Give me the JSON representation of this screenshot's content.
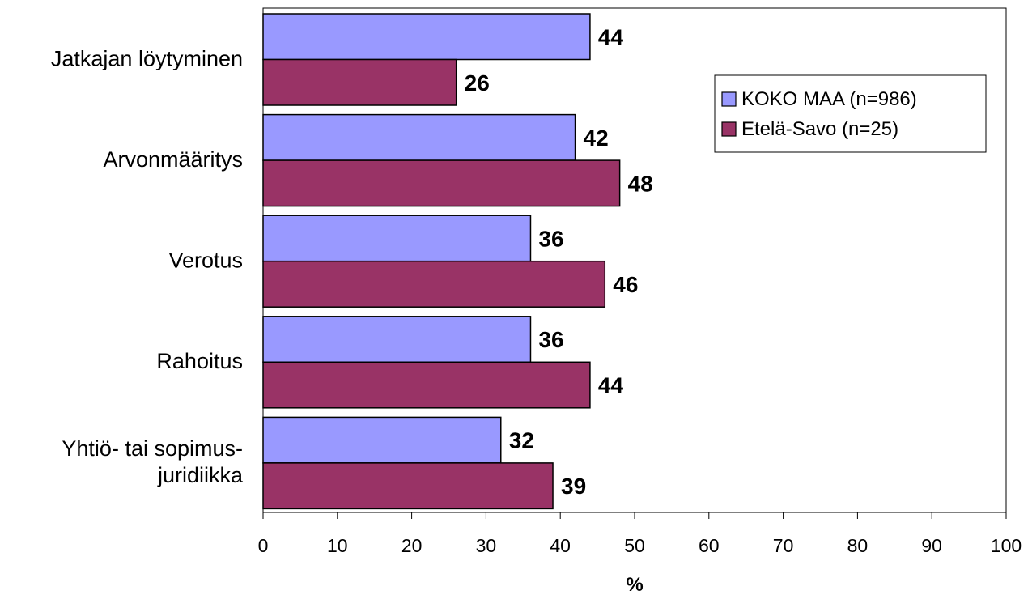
{
  "chart_data": {
    "type": "bar",
    "orientation": "horizontal",
    "categories": [
      "Jatkajan löytyminen",
      "Arvonmääritys",
      "Verotus",
      "Rahoitus",
      "Yhtiö- tai sopimus- juridiikka"
    ],
    "category_lines": [
      [
        "Jatkajan löytyminen"
      ],
      [
        "Arvonmääritys"
      ],
      [
        "Verotus"
      ],
      [
        "Rahoitus"
      ],
      [
        "Yhtiö- tai sopimus-",
        "juridiikka"
      ]
    ],
    "series": [
      {
        "name": "KOKO MAA (n=986)",
        "color": "#9999ff",
        "values": [
          44,
          42,
          36,
          36,
          32
        ]
      },
      {
        "name": "Etelä-Savo (n=25)",
        "color": "#993366",
        "values": [
          26,
          48,
          46,
          44,
          39
        ]
      }
    ],
    "xlabel": "%",
    "xlim": [
      0,
      100
    ],
    "xticks": [
      0,
      10,
      20,
      30,
      40,
      50,
      60,
      70,
      80,
      90,
      100
    ],
    "data_labels": true,
    "grid": false,
    "legend_position": "top-right"
  }
}
